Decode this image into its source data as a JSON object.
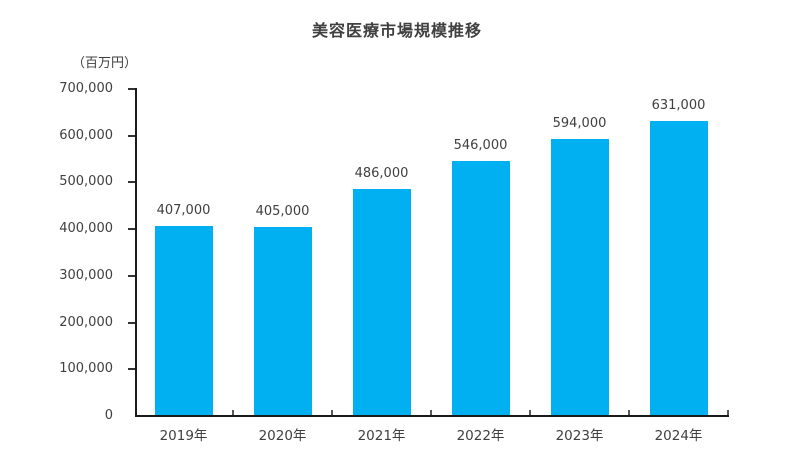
{
  "chart_data": {
    "type": "bar",
    "title": "美容医療市場規模推移",
    "unit_label": "（百万円）",
    "categories": [
      "2019年",
      "2020年",
      "2021年",
      "2022年",
      "2023年",
      "2024年"
    ],
    "values": [
      407000,
      405000,
      486000,
      546000,
      594000,
      631000
    ],
    "value_labels": [
      "407,000",
      "405,000",
      "486,000",
      "546,000",
      "594,000",
      "631,000"
    ],
    "ylabel": "（百万円）",
    "xlabel": "",
    "ylim": [
      0,
      700000
    ],
    "ytick_step": 100000,
    "ytick_labels": [
      "0",
      "100,000",
      "200,000",
      "300,000",
      "400,000",
      "500,000",
      "600,000",
      "700,000"
    ],
    "bar_color": "#00B0F0",
    "grid": false,
    "legend": "none"
  }
}
